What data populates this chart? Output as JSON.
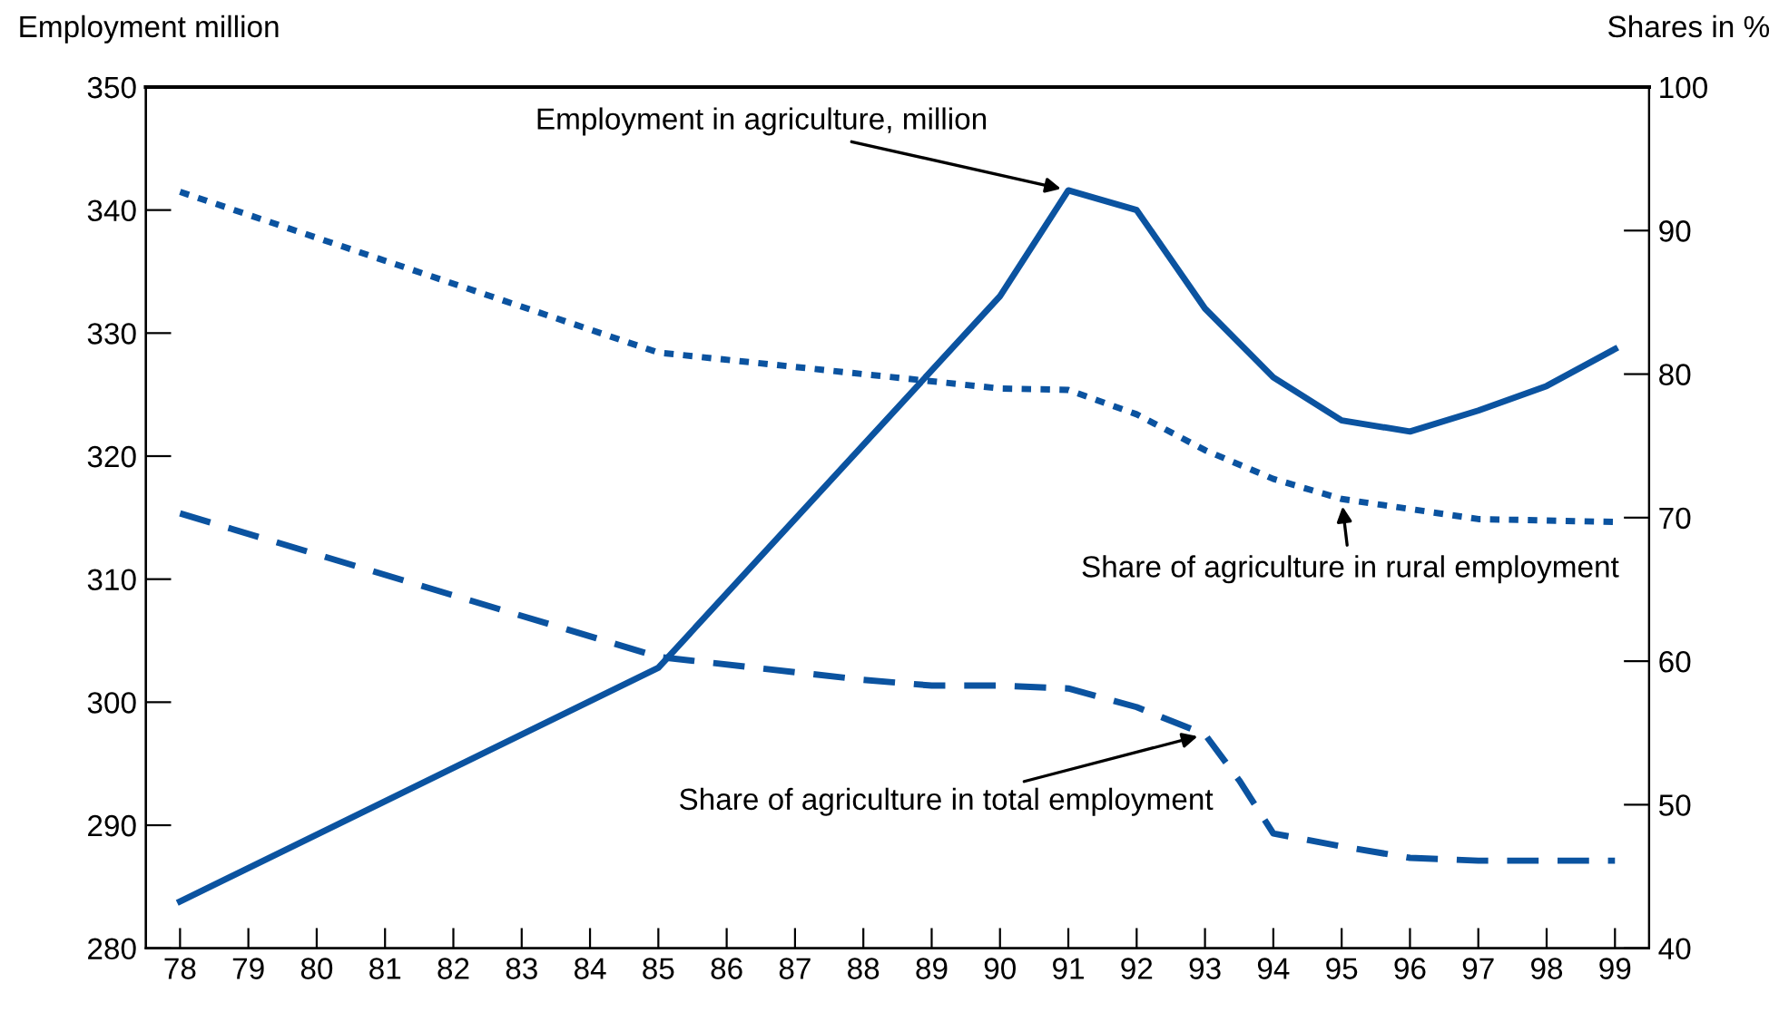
{
  "chart_data": {
    "type": "line",
    "ylabel": "Employment million",
    "y2label": "Shares in %",
    "x": [
      78,
      85,
      90,
      91,
      92,
      93,
      94,
      95,
      96,
      97,
      98,
      99
    ],
    "xlim": [
      77.5,
      99.5
    ],
    "xticks": [
      {
        "value": 78,
        "label": "78"
      },
      {
        "value": 79,
        "label": "79"
      },
      {
        "value": 80,
        "label": "80"
      },
      {
        "value": 81,
        "label": "81"
      },
      {
        "value": 82,
        "label": "82"
      },
      {
        "value": 83,
        "label": "83"
      },
      {
        "value": 84,
        "label": "84"
      },
      {
        "value": 85,
        "label": "85"
      },
      {
        "value": 86,
        "label": "86"
      },
      {
        "value": 87,
        "label": "87"
      },
      {
        "value": 88,
        "label": "88"
      },
      {
        "value": 89,
        "label": "89"
      },
      {
        "value": 90,
        "label": "90"
      },
      {
        "value": 91,
        "label": "91"
      },
      {
        "value": 92,
        "label": "92"
      },
      {
        "value": 93,
        "label": "93"
      },
      {
        "value": 94,
        "label": "94"
      },
      {
        "value": 95,
        "label": "95"
      },
      {
        "value": 96,
        "label": "96"
      },
      {
        "value": 97,
        "label": "97"
      },
      {
        "value": 98,
        "label": "98"
      },
      {
        "value": 99,
        "label": "99"
      }
    ],
    "ylim": [
      280,
      350
    ],
    "yticks": [
      280,
      290,
      300,
      310,
      320,
      330,
      340,
      350
    ],
    "y2lim": [
      40,
      100
    ],
    "y2ticks": [
      40,
      50,
      60,
      70,
      80,
      90,
      100
    ],
    "grid": false,
    "legend": false,
    "series": [
      {
        "name": "Employment in agriculture, million",
        "color": "#0b53a0",
        "line_style": "solid",
        "values": [
          283.8,
          302.8,
          333,
          341.6,
          340,
          332,
          326.4,
          322.9,
          322,
          323.7,
          325.7,
          328.7
        ]
      },
      {
        "name": "Share of agriculture in rural employment",
        "color": "#0b53a0",
        "line_style": "dotted",
        "axis": "y2",
        "values": [
          92.7,
          81.5,
          79,
          78.9,
          77.2,
          74.7,
          72.7,
          71.3,
          70.6,
          69.9,
          69.8,
          69.7
        ]
      },
      {
        "name": "Share of agriculture in total employment",
        "color": "#0b53a0",
        "line_style": "dashed",
        "axis": "y2",
        "x": [
          78,
          85,
          88,
          89,
          90,
          91,
          92,
          93,
          93.5,
          94,
          95,
          96,
          97,
          98,
          99
        ],
        "values": [
          70.3,
          60.3,
          58.7,
          58.3,
          58.3,
          58.1,
          56.8,
          54.9,
          51.7,
          48,
          47.1,
          46.3,
          46.1,
          46.1,
          46.1
        ]
      }
    ]
  }
}
